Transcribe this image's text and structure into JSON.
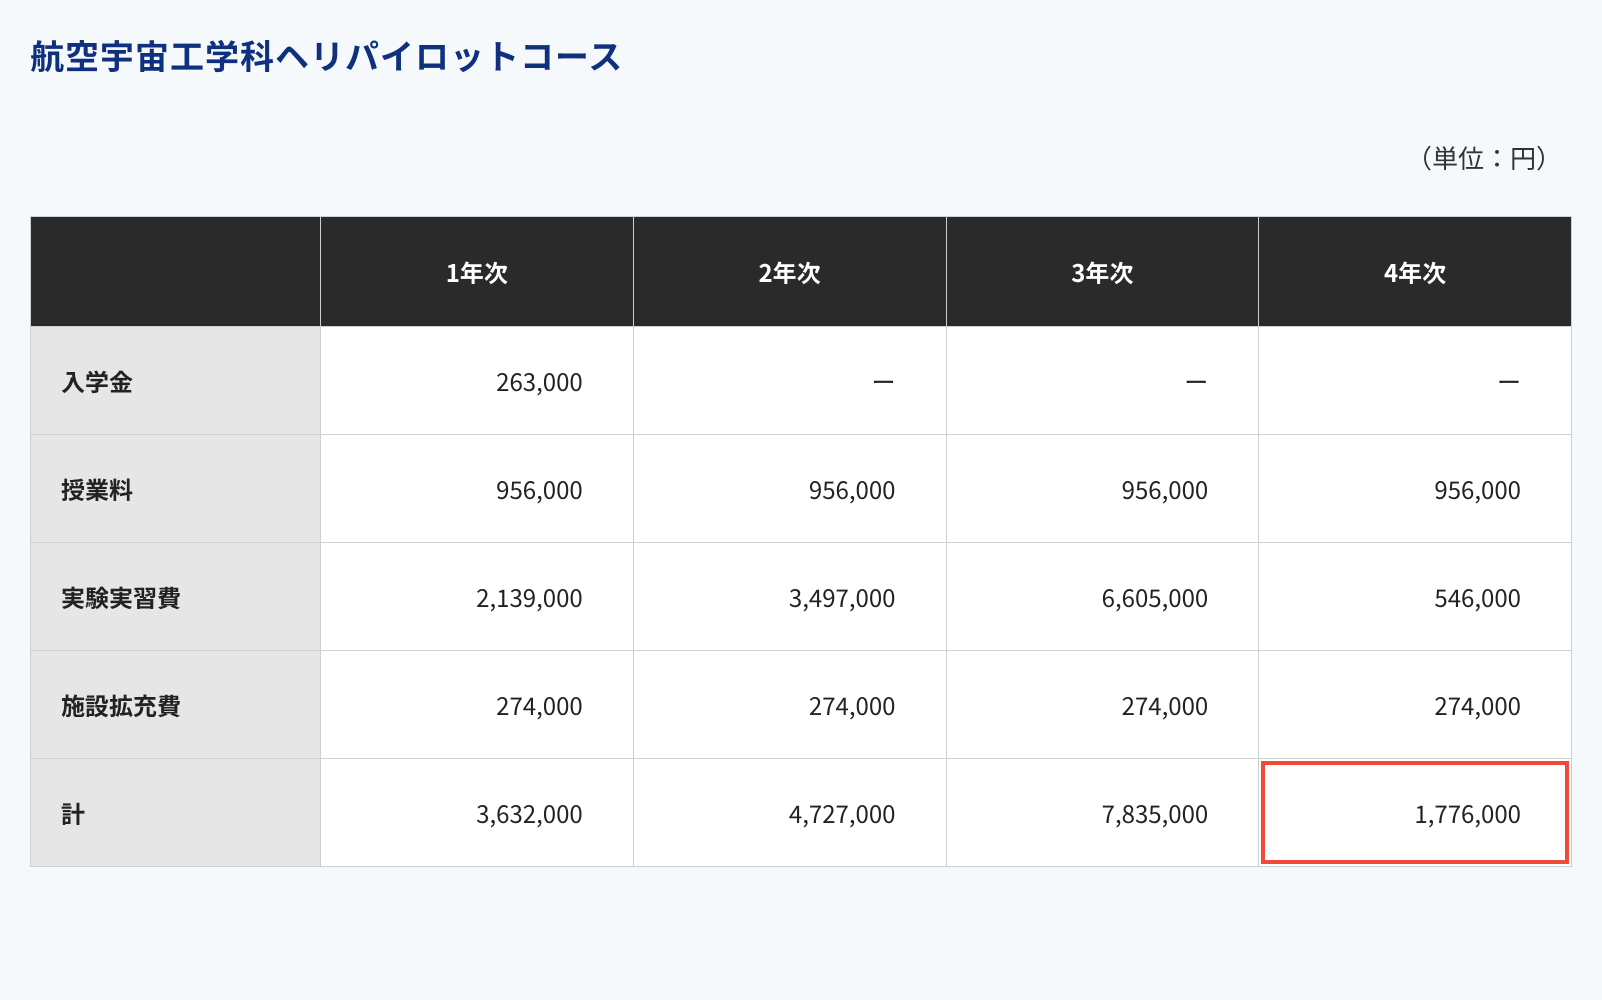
{
  "title": "航空宇宙工学科ヘリパイロットコース",
  "unit_label": "（単位：円）",
  "table": {
    "columns": [
      "",
      "1年次",
      "2年次",
      "3年次",
      "4年次"
    ],
    "rows": [
      {
        "label": "入学金",
        "cells": [
          "263,000",
          "ー",
          "ー",
          "ー"
        ]
      },
      {
        "label": "授業料",
        "cells": [
          "956,000",
          "956,000",
          "956,000",
          "956,000"
        ]
      },
      {
        "label": "実験実習費",
        "cells": [
          "2,139,000",
          "3,497,000",
          "6,605,000",
          "546,000"
        ]
      },
      {
        "label": "施設拡充費",
        "cells": [
          "274,000",
          "274,000",
          "274,000",
          "274,000"
        ]
      },
      {
        "label": "計",
        "cells": [
          "3,632,000",
          "4,727,000",
          "7,835,000",
          "1,776,000"
        ]
      }
    ],
    "highlight": {
      "row": 4,
      "col": 3
    },
    "colors": {
      "page_bg": "#f6f9fc",
      "title_color": "#0f2f7f",
      "header_bg": "#2a2a2a",
      "header_fg": "#ffffff",
      "row_header_bg": "#e6e6e6",
      "cell_bg": "#ffffff",
      "border_color": "#cfcfcf",
      "highlight_border": "#ef4a3a"
    },
    "fontsize": {
      "title": 34,
      "unit": 26,
      "header": 24,
      "cell": 24
    }
  }
}
